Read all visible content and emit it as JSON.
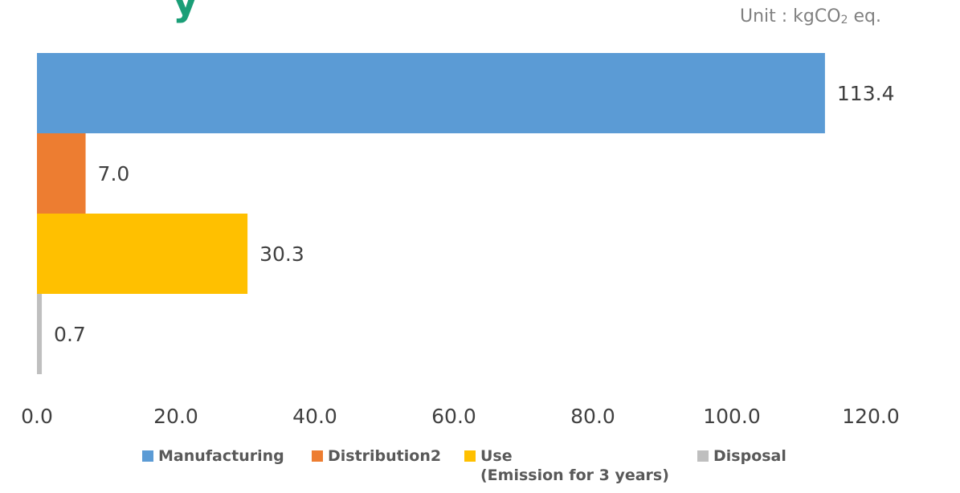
{
  "header": {
    "title_fragment": "y",
    "unit_prefix": "Unit : kgCO",
    "unit_sub": "2",
    "unit_suffix": " eq."
  },
  "legend": {
    "items": [
      {
        "label": "Manufacturing",
        "color": "#5b9bd5"
      },
      {
        "label": "Distribution2",
        "color": "#ed7d31"
      },
      {
        "label": "Use",
        "sublabel": "(Emission for 3 years)",
        "color": "#ffc000"
      },
      {
        "label": "Disposal",
        "color": "#bfbfbf"
      }
    ]
  },
  "chart_data": {
    "type": "bar",
    "orientation": "horizontal",
    "title": "",
    "xlabel": "",
    "ylabel": "",
    "unit": "kgCO2 eq.",
    "xlim": [
      0,
      120
    ],
    "ticks": [
      "0.0",
      "20.0",
      "40.0",
      "60.0",
      "80.0",
      "100.0",
      "120.0"
    ],
    "tick_values": [
      0,
      20,
      40,
      60,
      80,
      100,
      120
    ],
    "grid": false,
    "legend_position": "bottom",
    "series": [
      {
        "name": "Manufacturing",
        "value": 113.4,
        "label": "113.4",
        "color": "#5b9bd5"
      },
      {
        "name": "Distribution2",
        "value": 7.0,
        "label": "7.0",
        "color": "#ed7d31"
      },
      {
        "name": "Use",
        "value": 30.3,
        "label": "30.3",
        "color": "#ffc000"
      },
      {
        "name": "Disposal",
        "value": 0.7,
        "label": "0.7",
        "color": "#bfbfbf"
      }
    ]
  }
}
